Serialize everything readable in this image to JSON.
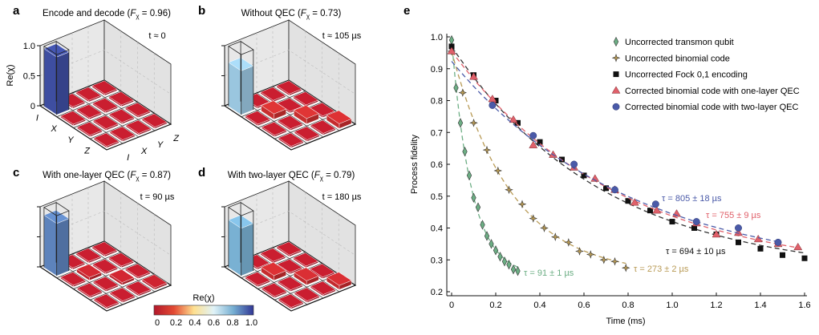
{
  "chart_data": [
    {
      "panel": "a",
      "type": "bar3d",
      "title": "Encode and decode",
      "fidelity_symbol": "F",
      "fidelity_sub": "χ",
      "fidelity": "0.96",
      "annotation": "t ≈ 0",
      "row_labels": [
        "I",
        "X",
        "Y",
        "Z"
      ],
      "col_labels": [
        "I",
        "X",
        "Y",
        "Z"
      ],
      "zlabel": "Re(χ)",
      "zticks": [
        "0",
        "0.5",
        "1.0"
      ],
      "zlim": [
        0,
        1
      ],
      "values": [
        [
          0.96,
          0.01,
          0.01,
          0.01
        ],
        [
          0.01,
          0.01,
          0.01,
          0.01
        ],
        [
          0.01,
          0.01,
          0.01,
          0.01
        ],
        [
          0.01,
          0.01,
          0.01,
          0.01
        ]
      ]
    },
    {
      "panel": "b",
      "type": "bar3d",
      "title": "Without QEC",
      "fidelity_symbol": "F",
      "fidelity_sub": "χ",
      "fidelity": "0.73",
      "annotation": "t ≈ 105 µs",
      "zlim": [
        0,
        1
      ],
      "values": [
        [
          0.73,
          0.01,
          0.01,
          0.01
        ],
        [
          0.01,
          0.09,
          0.01,
          0.01
        ],
        [
          0.01,
          0.01,
          0.09,
          0.01
        ],
        [
          0.01,
          0.01,
          0.01,
          0.08
        ]
      ]
    },
    {
      "panel": "c",
      "type": "bar3d",
      "title": "With one-layer QEC",
      "fidelity_symbol": "F",
      "fidelity_sub": "χ",
      "fidelity": "0.87",
      "annotation": "t = 90 µs",
      "zlim": [
        0,
        1
      ],
      "values": [
        [
          0.87,
          0.01,
          0.01,
          0.01
        ],
        [
          0.01,
          0.05,
          0.01,
          0.01
        ],
        [
          0.01,
          0.01,
          0.04,
          0.01
        ],
        [
          0.01,
          0.01,
          0.01,
          0.03
        ]
      ]
    },
    {
      "panel": "d",
      "type": "bar3d",
      "title": "With two-layer QEC",
      "fidelity_symbol": "F",
      "fidelity_sub": "χ",
      "fidelity": "0.79",
      "annotation": "t = 180 µs",
      "zlim": [
        0,
        1
      ],
      "values": [
        [
          0.79,
          0.01,
          0.01,
          0.01
        ],
        [
          0.01,
          0.08,
          0.01,
          0.01
        ],
        [
          0.01,
          0.01,
          0.07,
          0.01
        ],
        [
          0.01,
          0.01,
          0.01,
          0.07
        ]
      ]
    },
    {
      "panel": "e",
      "type": "scatter",
      "xlabel": "Time (ms)",
      "ylabel": "Process fidelity",
      "xlim": [
        0,
        1.6
      ],
      "ylim": [
        0.2,
        1.0
      ],
      "xticks": [
        "0",
        "0.2",
        "0.4",
        "0.6",
        "0.8",
        "1.0",
        "1.2",
        "1.4",
        "1.6"
      ],
      "yticks": [
        "0.2",
        "0.3",
        "0.4",
        "0.5",
        "0.6",
        "0.7",
        "0.8",
        "0.9",
        "1.0"
      ],
      "legend_position": "top-right",
      "series": [
        {
          "name": "Uncorrected transmon qubit",
          "marker": "diamond",
          "color": "#6cae84",
          "tau_label": "τ = 91 ± 1 µs",
          "tau_ms": 0.091,
          "x": [
            0,
            0.02,
            0.04,
            0.06,
            0.08,
            0.1,
            0.12,
            0.14,
            0.16,
            0.18,
            0.2,
            0.22,
            0.24,
            0.26,
            0.28,
            0.3
          ],
          "y": [
            0.99,
            0.84,
            0.73,
            0.64,
            0.565,
            0.495,
            0.465,
            0.41,
            0.375,
            0.35,
            0.33,
            0.31,
            0.295,
            0.285,
            0.27,
            0.265
          ]
        },
        {
          "name": "Uncorrected binomial code",
          "marker": "star",
          "color": "#b89a55",
          "tau_label": "τ = 273 ± 2 µs",
          "tau_ms": 0.273,
          "x": [
            0,
            0.05,
            0.1,
            0.16,
            0.21,
            0.26,
            0.32,
            0.37,
            0.42,
            0.47,
            0.53,
            0.58,
            0.63,
            0.69,
            0.74,
            0.79
          ],
          "y": [
            0.955,
            0.825,
            0.73,
            0.645,
            0.58,
            0.52,
            0.475,
            0.43,
            0.4,
            0.372,
            0.355,
            0.327,
            0.317,
            0.3,
            0.295,
            0.275
          ]
        },
        {
          "name": "Uncorrected Fock 0,1 encoding",
          "marker": "square",
          "color": "#111111",
          "tau_label": "τ = 694 ± 10 µs",
          "tau_ms": 0.694,
          "x": [
            0,
            0.1,
            0.2,
            0.3,
            0.4,
            0.5,
            0.6,
            0.7,
            0.8,
            0.9,
            1.0,
            1.1,
            1.2,
            1.3,
            1.4,
            1.5,
            1.6
          ],
          "y": [
            0.97,
            0.88,
            0.8,
            0.73,
            0.67,
            0.615,
            0.565,
            0.525,
            0.485,
            0.455,
            0.42,
            0.4,
            0.38,
            0.355,
            0.335,
            0.315,
            0.305
          ]
        },
        {
          "name": "Corrected binomial code with one-layer QEC",
          "marker": "triangle",
          "color": "#e0606a",
          "tau_label": "τ = 755 ± 9 µs",
          "tau_ms": 0.755,
          "x": [
            0,
            0.1,
            0.185,
            0.28,
            0.37,
            0.46,
            0.555,
            0.65,
            0.74,
            0.83,
            0.93,
            1.02,
            1.11,
            1.2,
            1.3,
            1.39,
            1.48,
            1.57
          ],
          "y": [
            0.955,
            0.875,
            0.805,
            0.74,
            0.66,
            0.63,
            0.59,
            0.555,
            0.52,
            0.48,
            0.455,
            0.445,
            0.415,
            0.38,
            0.385,
            0.365,
            0.35,
            0.34
          ]
        },
        {
          "name": "Corrected binomial code with two-layer QEC",
          "marker": "circle",
          "color": "#4a5aa8",
          "tau_label": "τ = 805 ± 18 µs",
          "tau_ms": 0.805,
          "x": [
            0.185,
            0.37,
            0.555,
            0.74,
            0.925,
            1.11,
            1.3,
            1.48
          ],
          "y": [
            0.785,
            0.69,
            0.6,
            0.52,
            0.475,
            0.42,
            0.4,
            0.355
          ]
        }
      ]
    }
  ],
  "colorbar": {
    "label": "Re(χ)",
    "ticks": [
      "0",
      "0.2",
      "0.4",
      "0.6",
      "0.8",
      "1.0"
    ],
    "colors": [
      "#b2182b",
      "#e34a33",
      "#fee090",
      "#e0f3f8",
      "#74add1",
      "#313695"
    ]
  }
}
